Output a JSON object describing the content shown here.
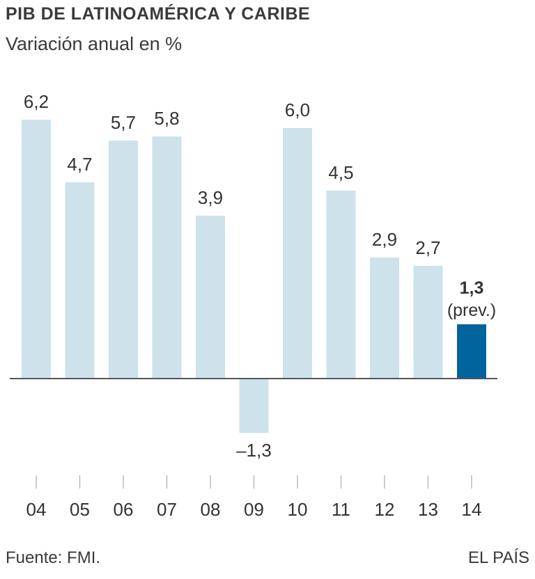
{
  "header": {
    "title": "PIB DE LATINOAMÉRICA Y CARIBE",
    "subtitle": "Variación anual en %"
  },
  "footer": {
    "source": "Fuente: FMI.",
    "brand": "EL PAÍS"
  },
  "colors": {
    "bar": "#cde2eb",
    "highlight": "#02649c",
    "axis": "#555555",
    "text": "#333333"
  },
  "chart_data": {
    "type": "bar",
    "title": "PIB DE LATINOAMÉRICA Y CARIBE",
    "subtitle": "Variación anual en %",
    "xlabel": "",
    "ylabel": "",
    "categories": [
      "04",
      "05",
      "06",
      "07",
      "08",
      "09",
      "10",
      "11",
      "12",
      "13",
      "14"
    ],
    "values": [
      6.2,
      4.7,
      5.7,
      5.8,
      3.9,
      -1.3,
      6.0,
      4.5,
      2.9,
      2.7,
      1.3
    ],
    "labels": [
      "6,2",
      "4,7",
      "5,7",
      "5,8",
      "3,9",
      "–1,3",
      "6,0",
      "4,5",
      "2,9",
      "2,7",
      "1,3"
    ],
    "highlight_index": 10,
    "highlight_note": "(prev.)",
    "ylim": [
      -1.3,
      6.2
    ],
    "grid": false,
    "legend": "none",
    "source": "Fuente: FMI."
  }
}
